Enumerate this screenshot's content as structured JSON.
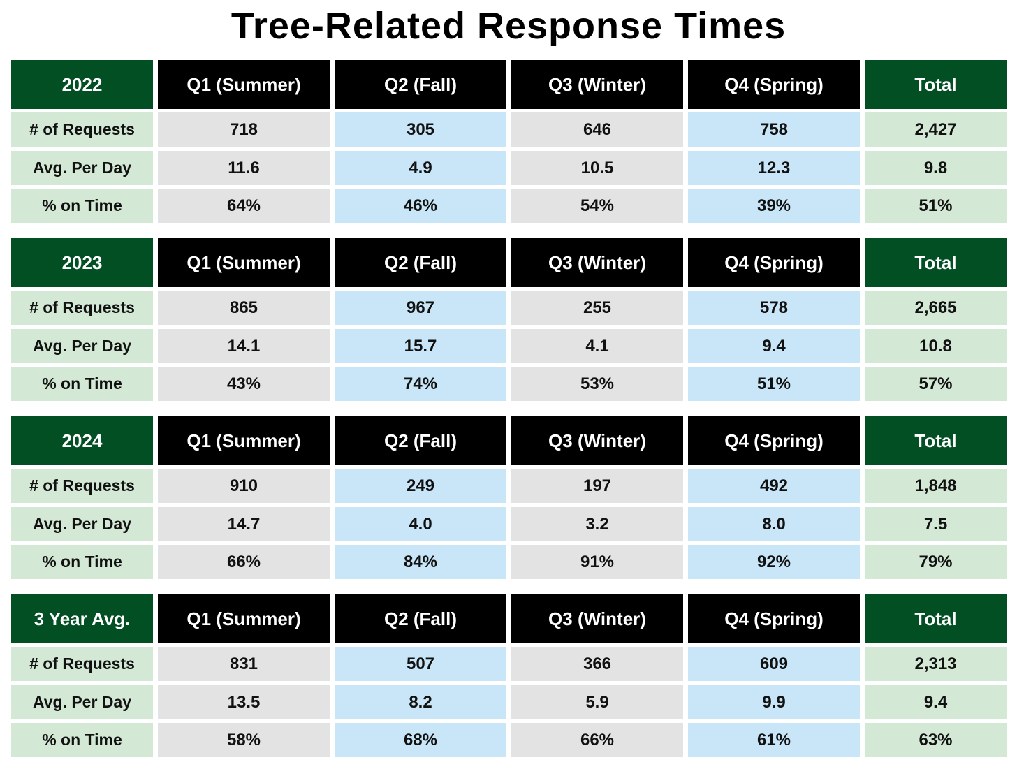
{
  "chart_data": {
    "type": "table",
    "title": "Tree-Related Response Times",
    "columns": [
      "Q1 (Summer)",
      "Q2 (Fall)",
      "Q3 (Winter)",
      "Q4 (Spring)",
      "Total"
    ],
    "row_labels": [
      "# of Requests",
      "Avg. Per Day",
      "% on Time"
    ],
    "blocks": [
      {
        "name": "2022",
        "rows": [
          [
            "718",
            "305",
            "646",
            "758",
            "2,427"
          ],
          [
            "11.6",
            "4.9",
            "10.5",
            "12.3",
            "9.8"
          ],
          [
            "64%",
            "46%",
            "54%",
            "39%",
            "51%"
          ]
        ]
      },
      {
        "name": "2023",
        "rows": [
          [
            "865",
            "967",
            "255",
            "578",
            "2,665"
          ],
          [
            "14.1",
            "15.7",
            "4.1",
            "9.4",
            "10.8"
          ],
          [
            "43%",
            "74%",
            "53%",
            "51%",
            "57%"
          ]
        ]
      },
      {
        "name": "2024",
        "rows": [
          [
            "910",
            "249",
            "197",
            "492",
            "1,848"
          ],
          [
            "14.7",
            "4.0",
            "3.2",
            "8.0",
            "7.5"
          ],
          [
            "66%",
            "84%",
            "91%",
            "92%",
            "79%"
          ]
        ]
      },
      {
        "name": "3 Year Avg.",
        "rows": [
          [
            "831",
            "507",
            "366",
            "609",
            "2,313"
          ],
          [
            "13.5",
            "8.2",
            "5.9",
            "9.9",
            "9.4"
          ],
          [
            "58%",
            "68%",
            "66%",
            "61%",
            "63%"
          ]
        ]
      }
    ]
  },
  "colors": {
    "header_green": "#024f24",
    "header_black": "#000000",
    "label_green": "#d3e8d5",
    "column_gray": "#e3e3e3",
    "column_blue": "#c8e6f7",
    "total_green": "#d3e8d5"
  }
}
